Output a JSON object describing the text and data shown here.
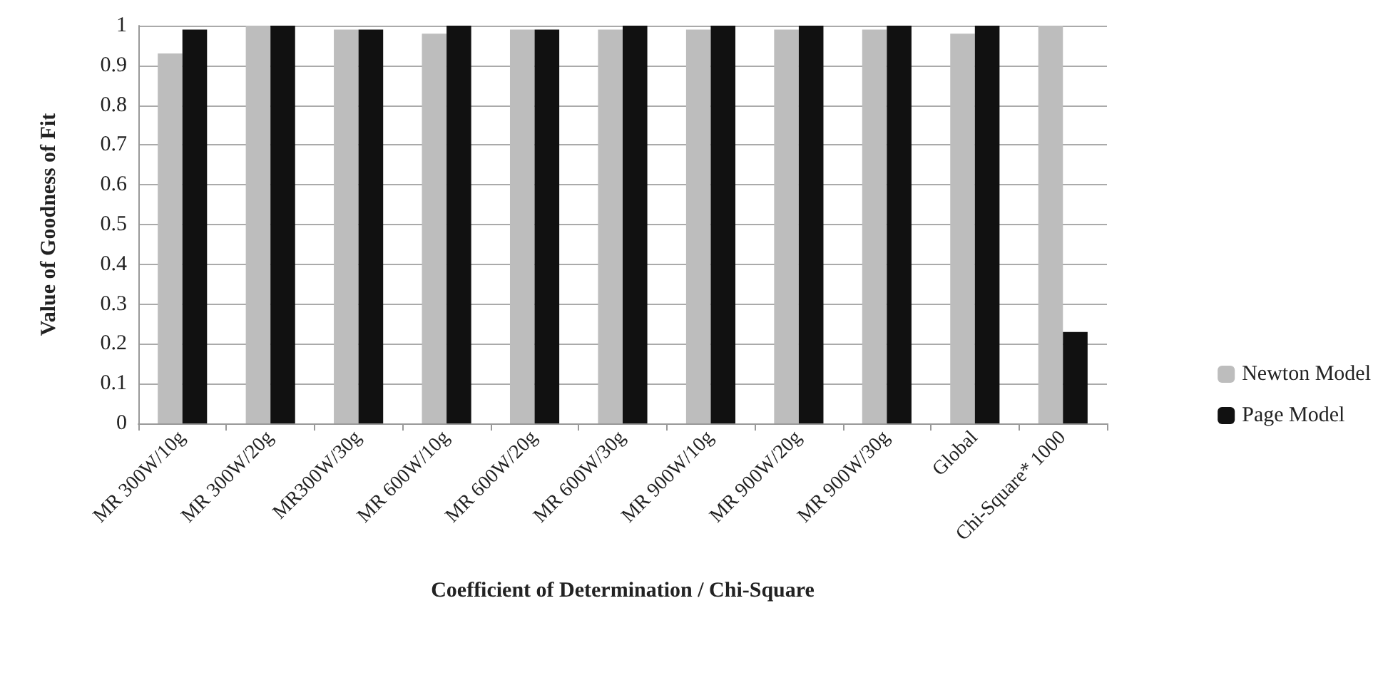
{
  "chart_data": {
    "type": "bar",
    "xlabel": "Coefficient of Determination / Chi-Square",
    "ylabel": "Value of Goodness of Fit",
    "categories": [
      "MR 300W/10g",
      "MR 300W/20g",
      "MR300W/30g",
      "MR 600W/10g",
      "MR 600W/20g",
      "MR 600W/30g",
      "MR 900W/10g",
      "MR 900W/20g",
      "MR 900W/30g",
      "Global",
      "Chi-Square* 1000"
    ],
    "series": [
      {
        "name": "Newton Model",
        "color": "#bdbdbd",
        "values": [
          0.93,
          1.0,
          0.99,
          0.98,
          0.99,
          0.99,
          0.99,
          0.99,
          0.99,
          0.98,
          1.0
        ]
      },
      {
        "name": "Page Model",
        "color": "#111111",
        "values": [
          0.99,
          1.0,
          0.99,
          1.0,
          0.99,
          1.0,
          1.0,
          1.0,
          1.0,
          1.0,
          0.23
        ]
      }
    ],
    "ylim": [
      0,
      1
    ],
    "yticks": [
      0,
      0.1,
      0.2,
      0.3,
      0.4,
      0.5,
      0.6,
      0.7,
      0.8,
      0.9,
      1
    ],
    "grid": "y",
    "legend": "right"
  }
}
